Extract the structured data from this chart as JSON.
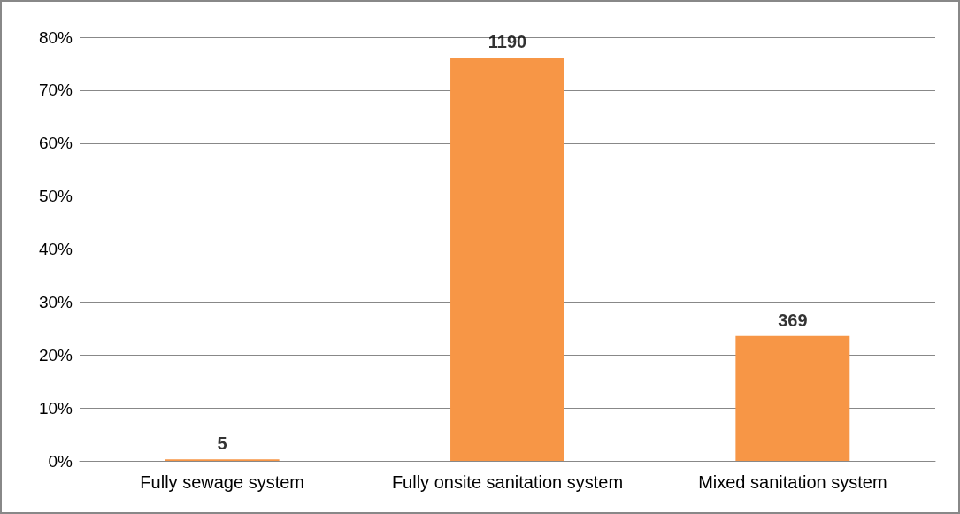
{
  "chart_data": {
    "type": "bar",
    "categories": [
      "Fully sewage system",
      "Fully onsite sanitation system",
      "Mixed sanitation system"
    ],
    "values": [
      0.3,
      76.1,
      23.6
    ],
    "color": "#f79646",
    "annotations": [
      {
        "text": "5",
        "x": "Fully sewage system",
        "y": 0.3
      },
      {
        "text": "1190",
        "x": "Fully onsite sanitation system",
        "y": 76.1
      },
      {
        "text": "369",
        "x": "Mixed sanitation system",
        "y": 23.6
      }
    ],
    "ylim": [
      0,
      80
    ],
    "yticks": [
      {
        "value": 0,
        "label": "0%"
      },
      {
        "value": 10,
        "label": "10%"
      },
      {
        "value": 20,
        "label": "20%"
      },
      {
        "value": 30,
        "label": "30%"
      },
      {
        "value": 40,
        "label": "40%"
      },
      {
        "value": 50,
        "label": "50%"
      },
      {
        "value": 60,
        "label": "60%"
      },
      {
        "value": 70,
        "label": "70%"
      },
      {
        "value": 80,
        "label": "80%"
      }
    ],
    "grid": "y"
  }
}
